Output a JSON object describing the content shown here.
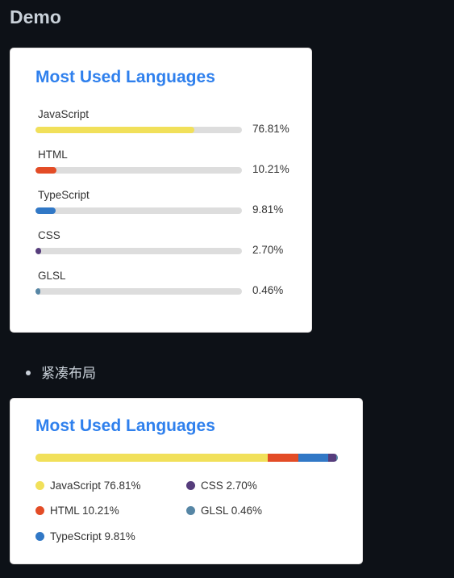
{
  "page_title": "Demo",
  "bullet_text": "紧凑布局",
  "card_title": "Most Used Languages",
  "colors": {
    "javascript": "#f1e05a",
    "html": "#e34c26",
    "typescript": "#3178c6",
    "css": "#563d7c",
    "glsl": "#5686a5",
    "title": "#2f80ed"
  },
  "languages": [
    {
      "name": "JavaScript",
      "percent": "76.81%",
      "value": 76.81,
      "color": "#f1e05a"
    },
    {
      "name": "HTML",
      "percent": "10.21%",
      "value": 10.21,
      "color": "#e34c26"
    },
    {
      "name": "TypeScript",
      "percent": "9.81%",
      "value": 9.81,
      "color": "#3178c6"
    },
    {
      "name": "CSS",
      "percent": "2.70%",
      "value": 2.7,
      "color": "#563d7c"
    },
    {
      "name": "GLSL",
      "percent": "0.46%",
      "value": 0.46,
      "color": "#5686a5"
    }
  ],
  "compact_legend": [
    {
      "label": "JavaScript 76.81%",
      "color": "#f1e05a"
    },
    {
      "label": "CSS 2.70%",
      "color": "#563d7c"
    },
    {
      "label": "HTML 10.21%",
      "color": "#e34c26"
    },
    {
      "label": "GLSL 0.46%",
      "color": "#5686a5"
    },
    {
      "label": "TypeScript 9.81%",
      "color": "#3178c6"
    }
  ]
}
